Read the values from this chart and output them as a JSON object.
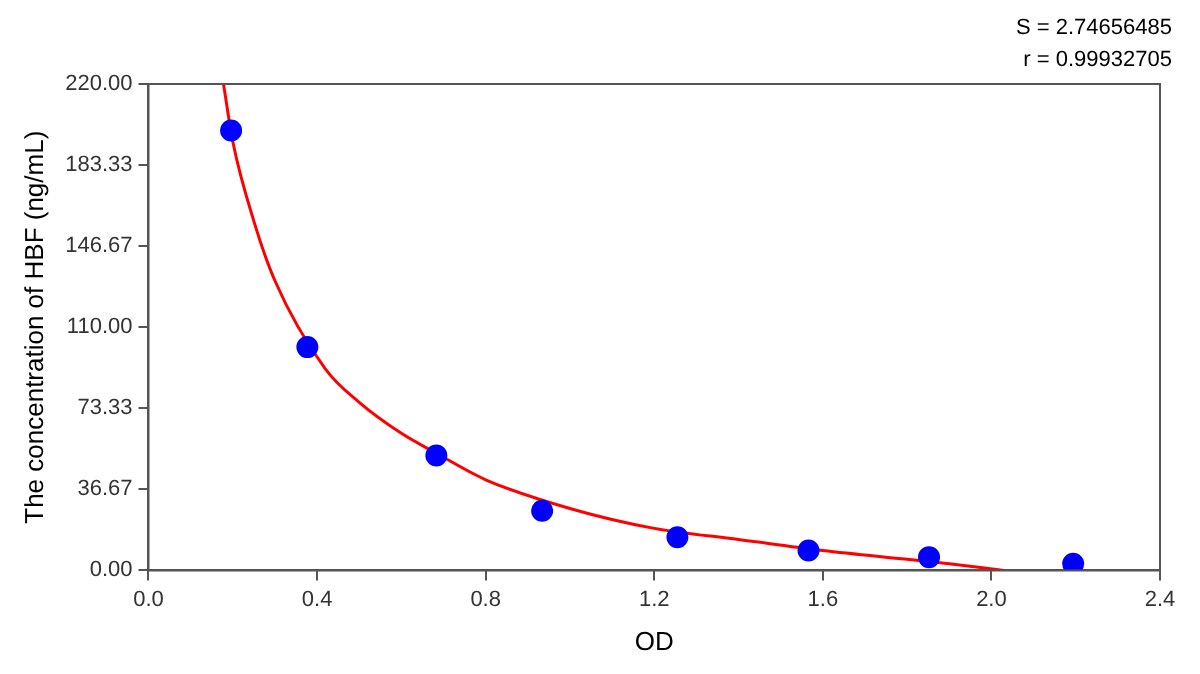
{
  "chart_data": {
    "type": "scatter",
    "xlabel": "OD",
    "ylabel": "The concentration of HBF (ng/mL)",
    "xlim": [
      0,
      2.4
    ],
    "xticks": [
      {
        "value": 0,
        "label": "0.0"
      },
      {
        "value": 0.4,
        "label": "0.4"
      },
      {
        "value": 0.8,
        "label": "0.8"
      },
      {
        "value": 1.2,
        "label": "1.2"
      },
      {
        "value": 1.6,
        "label": "1.6"
      },
      {
        "value": 2.0,
        "label": "2.0"
      },
      {
        "value": 2.4,
        "label": "2.4"
      }
    ],
    "ylim": [
      0,
      220
    ],
    "yticks": [
      {
        "value": 0,
        "label": "0.00"
      },
      {
        "value": 36.67,
        "label": "36.67"
      },
      {
        "value": 73.33,
        "label": "73.33"
      },
      {
        "value": 110,
        "label": "110.00"
      },
      {
        "value": 146.67,
        "label": "146.67"
      },
      {
        "value": 183.33,
        "label": "183.33"
      },
      {
        "value": 220,
        "label": "220.00"
      }
    ],
    "grid": false,
    "legend": false,
    "marker": "circle",
    "annotations": [
      "S = 2.74656485",
      "r = 0.99932705"
    ],
    "series": [
      {
        "type": "scatter",
        "color": "#0000ff",
        "x": [
          0.196,
          0.377,
          0.683,
          0.934,
          1.255,
          1.566,
          1.852,
          2.194
        ],
        "values": [
          199,
          101,
          52,
          27,
          15,
          9,
          6,
          3
        ]
      },
      {
        "type": "line",
        "color": "#ff0000",
        "marker": "none",
        "x": [
          0.178,
          0.2,
          0.25,
          0.3,
          0.42,
          0.5,
          0.6,
          0.683,
          0.8,
          1.0,
          1.2,
          1.4,
          1.6,
          1.8,
          1.9,
          2.03
        ],
        "values": [
          220,
          194,
          158,
          131,
          91,
          76,
          62,
          53,
          41,
          28,
          19,
          14,
          9,
          5,
          3,
          0
        ]
      }
    ]
  }
}
